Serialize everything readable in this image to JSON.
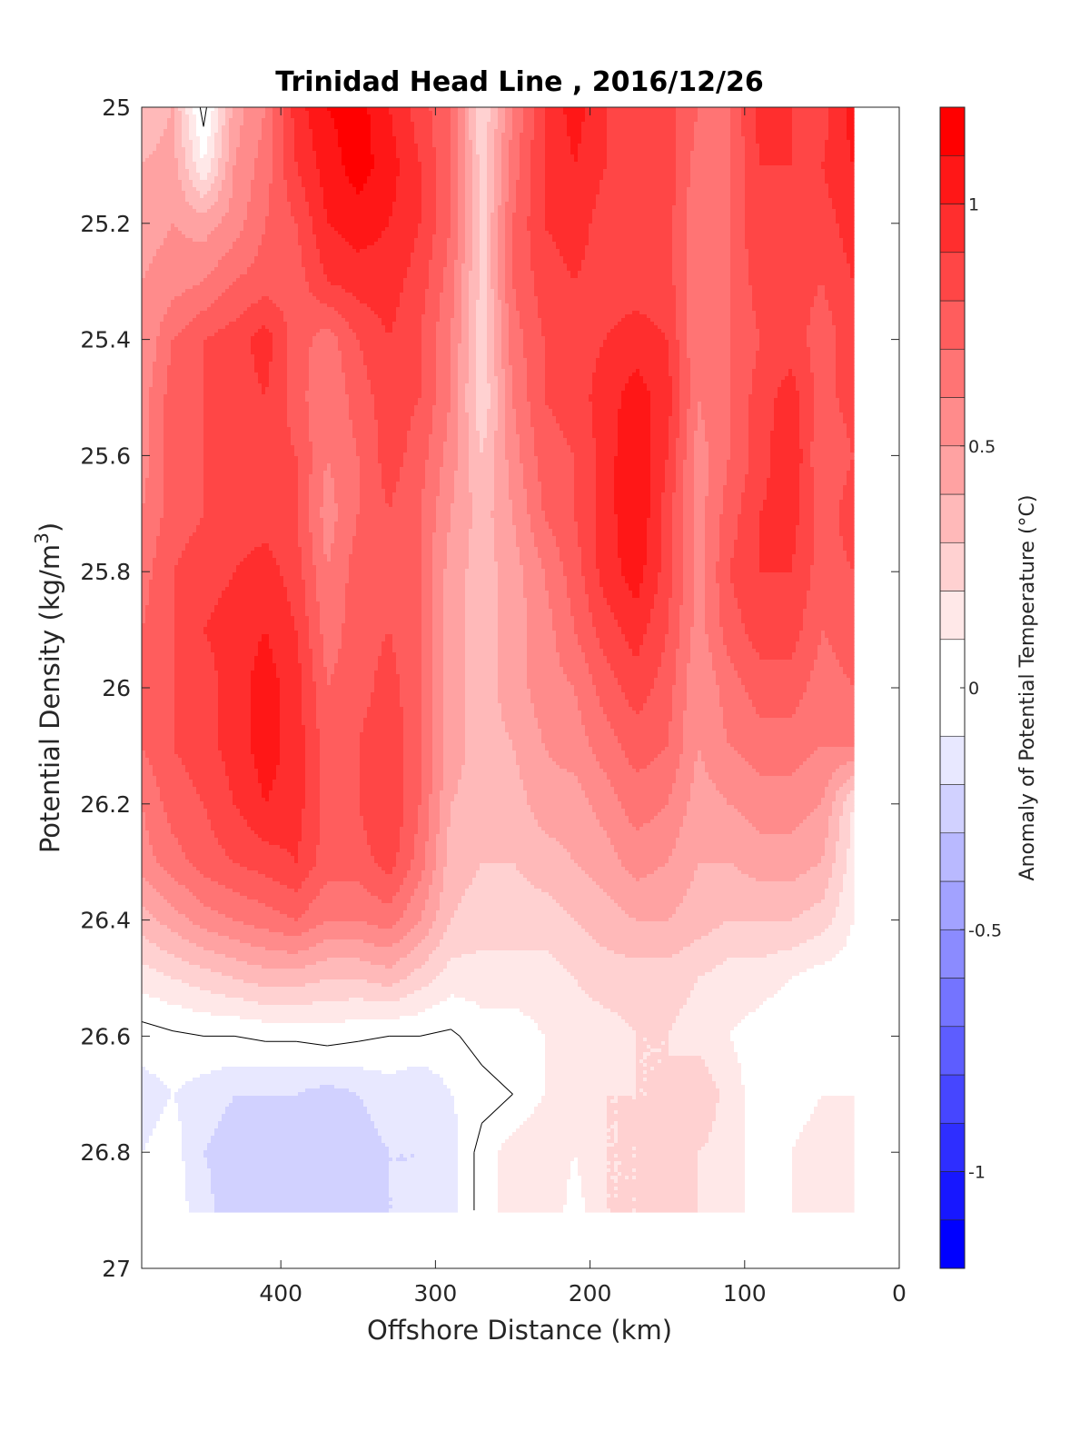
{
  "chart_data": {
    "type": "heatmap",
    "subtype": "filled-contour",
    "title": "Trinidad Head Line , 2016/12/26",
    "xlabel": "Offshore Distance (km)",
    "ylabel_main": "Potential Density (kg/m",
    "ylabel_sup": "3",
    "ylabel_close": ")",
    "xlim": [
      490,
      0
    ],
    "x_reversed": true,
    "ylim": [
      25,
      27
    ],
    "y_reversed": true,
    "x_ticks": [
      400,
      300,
      200,
      100,
      0
    ],
    "x_tick_labels": [
      "400",
      "300",
      "200",
      "100",
      "0"
    ],
    "y_ticks": [
      25,
      25.2,
      25.4,
      25.6,
      25.8,
      26,
      26.2,
      26.4,
      26.6,
      26.8,
      27
    ],
    "y_tick_labels": [
      "25",
      "25.2",
      "25.4",
      "25.6",
      "25.8",
      "26",
      "26.2",
      "26.4",
      "26.6",
      "26.8",
      "27"
    ],
    "data_bottom_density": 26.9,
    "data_nearshore_limit_km": 20,
    "x": [
      490,
      470,
      450,
      430,
      410,
      390,
      370,
      350,
      330,
      310,
      290,
      270,
      250,
      230,
      210,
      190,
      170,
      150,
      130,
      110,
      90,
      70,
      50,
      30
    ],
    "y": [
      25.0,
      25.1,
      25.2,
      25.3,
      25.4,
      25.5,
      25.6,
      25.7,
      25.8,
      25.9,
      26.0,
      26.1,
      26.2,
      26.3,
      26.4,
      26.5,
      26.6,
      26.7,
      26.8,
      26.9
    ],
    "z": [
      [
        0.3,
        0.4,
        -0.05,
        0.45,
        0.6,
        0.95,
        1.1,
        1.15,
        1.0,
        0.85,
        0.7,
        0.2,
        0.6,
        0.9,
        1.05,
        0.9,
        0.8,
        0.85,
        0.7,
        0.7,
        0.95,
        0.9,
        0.85,
        1.05
      ],
      [
        0.4,
        0.45,
        0.1,
        0.5,
        0.65,
        0.9,
        1.05,
        1.15,
        1.05,
        0.9,
        0.7,
        0.25,
        0.65,
        0.9,
        1.0,
        0.9,
        0.8,
        0.85,
        0.65,
        0.7,
        0.9,
        0.9,
        0.9,
        1.0
      ],
      [
        0.45,
        0.5,
        0.45,
        0.55,
        0.7,
        0.8,
        1.0,
        1.05,
        1.0,
        0.9,
        0.7,
        0.25,
        0.7,
        0.9,
        0.95,
        0.85,
        0.8,
        0.85,
        0.6,
        0.7,
        0.9,
        0.85,
        0.85,
        0.95
      ],
      [
        0.5,
        0.55,
        0.6,
        0.7,
        0.75,
        0.75,
        0.9,
        0.95,
        0.95,
        0.85,
        0.65,
        0.25,
        0.7,
        0.85,
        0.9,
        0.85,
        0.85,
        0.85,
        0.6,
        0.7,
        0.85,
        0.85,
        0.8,
        0.9
      ],
      [
        0.5,
        0.7,
        0.8,
        0.85,
        0.95,
        0.75,
        0.65,
        0.8,
        0.9,
        0.8,
        0.6,
        0.25,
        0.65,
        0.8,
        0.85,
        0.9,
        0.95,
        0.9,
        0.6,
        0.7,
        0.8,
        0.85,
        0.75,
        0.85
      ],
      [
        0.55,
        0.75,
        0.8,
        0.85,
        0.9,
        0.75,
        0.6,
        0.75,
        0.85,
        0.8,
        0.6,
        0.2,
        0.6,
        0.8,
        0.85,
        0.95,
        1.05,
        0.95,
        0.6,
        0.7,
        0.85,
        0.95,
        0.75,
        0.85
      ],
      [
        0.55,
        0.75,
        0.8,
        0.85,
        0.85,
        0.8,
        0.6,
        0.7,
        0.85,
        0.75,
        0.55,
        0.3,
        0.55,
        0.75,
        0.8,
        0.95,
        1.1,
        0.9,
        0.55,
        0.7,
        0.85,
        1.0,
        0.7,
        0.8
      ],
      [
        0.6,
        0.75,
        0.8,
        0.85,
        0.85,
        0.8,
        0.55,
        0.7,
        0.8,
        0.7,
        0.5,
        0.35,
        0.5,
        0.7,
        0.8,
        0.95,
        1.1,
        0.85,
        0.55,
        0.75,
        0.9,
        0.95,
        0.75,
        0.85
      ],
      [
        0.65,
        0.8,
        0.85,
        0.9,
        0.95,
        0.85,
        0.6,
        0.75,
        0.8,
        0.7,
        0.45,
        0.35,
        0.45,
        0.6,
        0.75,
        0.95,
        1.05,
        0.85,
        0.55,
        0.8,
        0.9,
        0.9,
        0.75,
        0.8
      ],
      [
        0.7,
        0.8,
        0.9,
        0.95,
        1.0,
        0.9,
        0.65,
        0.75,
        0.8,
        0.7,
        0.45,
        0.35,
        0.45,
        0.55,
        0.7,
        0.85,
        0.95,
        0.8,
        0.55,
        0.75,
        0.85,
        0.85,
        0.7,
        0.75
      ],
      [
        0.7,
        0.8,
        0.85,
        0.95,
        1.05,
        0.95,
        0.7,
        0.75,
        0.85,
        0.7,
        0.45,
        0.35,
        0.45,
        0.55,
        0.6,
        0.75,
        0.85,
        0.75,
        0.5,
        0.65,
        0.75,
        0.75,
        0.65,
        0.7
      ],
      [
        0.7,
        0.8,
        0.85,
        0.95,
        1.05,
        0.95,
        0.75,
        0.8,
        0.9,
        0.7,
        0.45,
        0.35,
        0.4,
        0.5,
        0.55,
        0.65,
        0.75,
        0.7,
        0.5,
        0.6,
        0.65,
        0.65,
        0.6,
        0.6
      ],
      [
        0.6,
        0.75,
        0.8,
        0.9,
        1.0,
        0.95,
        0.75,
        0.8,
        0.9,
        0.7,
        0.4,
        0.35,
        0.35,
        0.45,
        0.45,
        0.55,
        0.65,
        0.6,
        0.45,
        0.5,
        0.55,
        0.55,
        0.5,
        0.2
      ],
      [
        0.55,
        0.65,
        0.75,
        0.8,
        0.85,
        0.9,
        0.75,
        0.75,
        0.85,
        0.65,
        0.35,
        0.3,
        0.3,
        0.35,
        0.4,
        0.45,
        0.55,
        0.5,
        0.4,
        0.4,
        0.45,
        0.45,
        0.4,
        0.15
      ],
      [
        0.35,
        0.45,
        0.55,
        0.6,
        0.65,
        0.7,
        0.6,
        0.6,
        0.65,
        0.5,
        0.3,
        0.25,
        0.25,
        0.25,
        0.3,
        0.35,
        0.4,
        0.4,
        0.35,
        0.3,
        0.3,
        0.3,
        0.25,
        0.1
      ],
      [
        0.15,
        0.2,
        0.25,
        0.3,
        0.35,
        0.35,
        0.3,
        0.3,
        0.35,
        0.25,
        0.15,
        0.15,
        0.15,
        0.15,
        0.2,
        0.25,
        0.25,
        0.25,
        0.2,
        0.15,
        0.15,
        0.1,
        0.05,
        0.05
      ],
      [
        -0.05,
        -0.02,
        0.0,
        0.0,
        0.02,
        0.02,
        0.05,
        0.02,
        0.0,
        0.0,
        -0.02,
        0.05,
        0.05,
        0.1,
        0.15,
        0.15,
        0.2,
        0.2,
        0.15,
        0.1,
        0.05,
        0.0,
        0.05,
        0.1
      ],
      [
        -0.15,
        -0.1,
        -0.15,
        -0.2,
        -0.2,
        -0.2,
        -0.25,
        -0.2,
        -0.15,
        -0.2,
        -0.1,
        -0.05,
        0.0,
        0.1,
        0.15,
        0.2,
        0.2,
        0.2,
        0.3,
        0.15,
        0.05,
        0.05,
        0.1,
        0.1
      ],
      [
        -0.1,
        -0.05,
        -0.2,
        -0.25,
        -0.25,
        -0.25,
        -0.25,
        -0.25,
        -0.2,
        -0.2,
        -0.15,
        0.05,
        0.15,
        0.2,
        0.1,
        0.2,
        0.2,
        0.25,
        0.2,
        0.15,
        0.05,
        0.1,
        0.15,
        0.15
      ],
      [
        -0.05,
        -0.05,
        -0.15,
        -0.3,
        -0.25,
        -0.25,
        -0.25,
        -0.25,
        -0.2,
        -0.2,
        -0.15,
        0.05,
        0.15,
        0.2,
        0.05,
        0.2,
        0.2,
        0.2,
        0.2,
        0.15,
        0.05,
        0.1,
        0.1,
        0.1
      ]
    ],
    "colorbar": {
      "label": "Anomaly of Potential Temperature (°C)",
      "range": [
        -1.2,
        1.2
      ],
      "levels": [
        -1.2,
        -1.1,
        -1.0,
        -0.9,
        -0.8,
        -0.7,
        -0.6,
        -0.5,
        -0.4,
        -0.3,
        -0.2,
        -0.1,
        0.1,
        0.2,
        0.3,
        0.4,
        0.5,
        0.6,
        0.7,
        0.8,
        0.9,
        1.0,
        1.1,
        1.2
      ],
      "ticks": [
        -1,
        -0.5,
        0,
        0.5,
        1
      ],
      "tick_labels": [
        "-1",
        "-0.5",
        "0",
        "0.5",
        "1"
      ],
      "colormap": "blue-white-red",
      "color_neg": "#0000ff",
      "color_zero": "#ffffff",
      "color_pos": "#ff0000"
    },
    "zero_contour_line": true,
    "grid": false,
    "legend": "none"
  }
}
